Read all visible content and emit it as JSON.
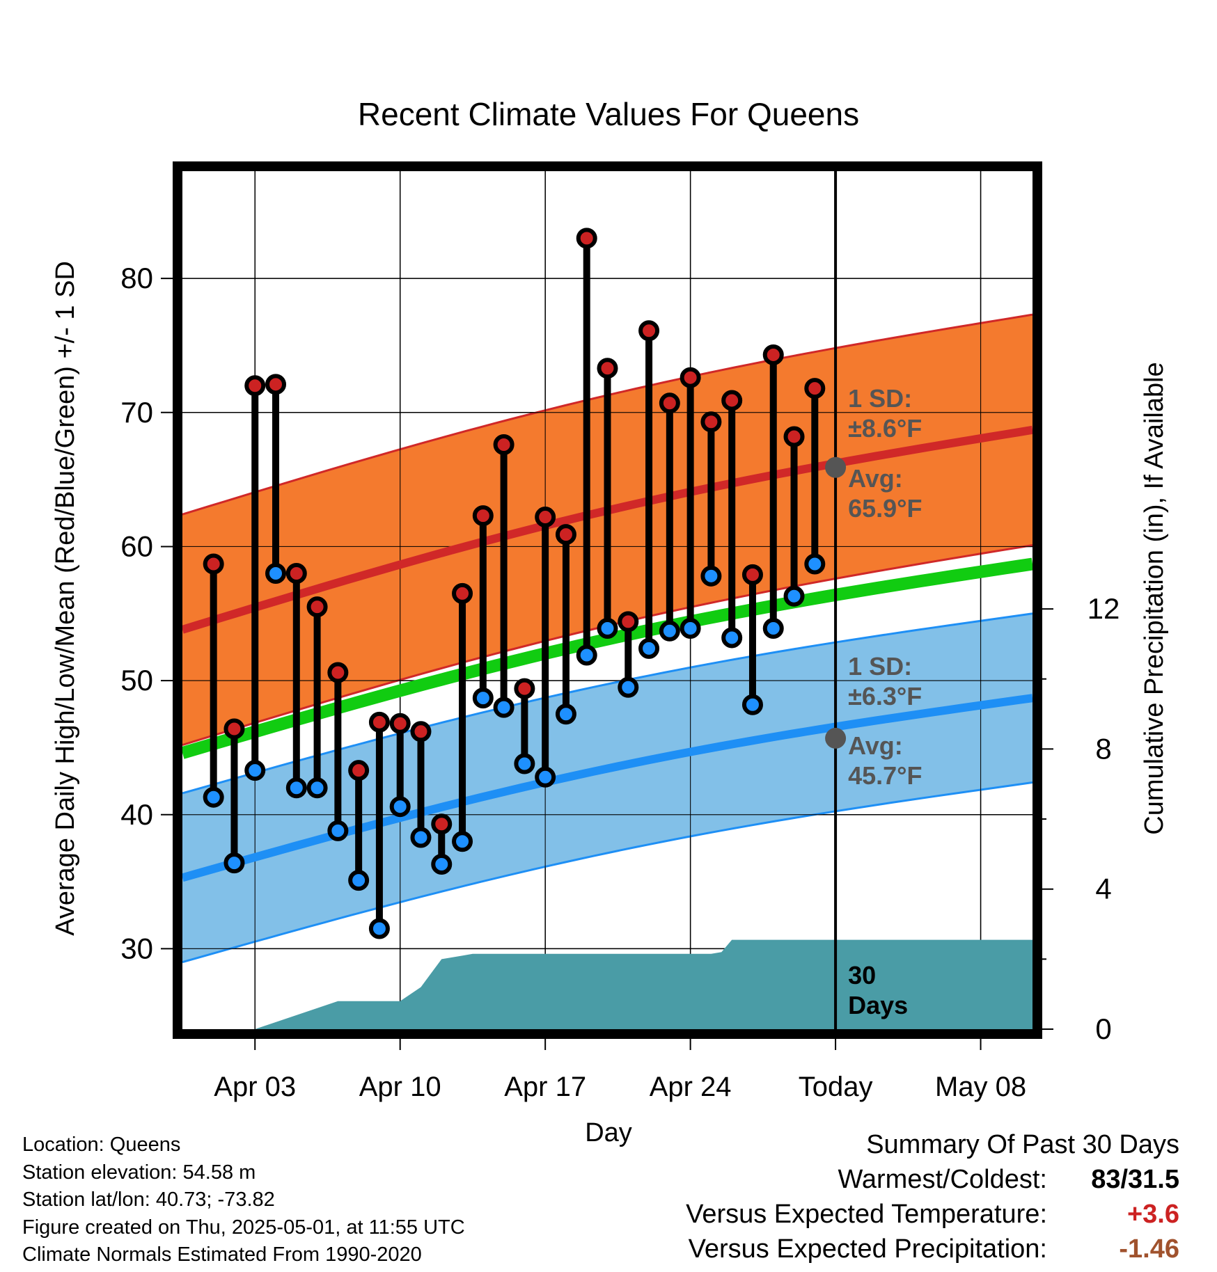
{
  "chart_data": {
    "type": "line",
    "title": "Recent Climate Values For Queens",
    "xlabel": "Day",
    "ylabel": "Average Daily High/Low/Mean (Red/Blue/Green) +/- 1 SD",
    "y2label": "Cumulative Precipitation (in), If Available",
    "x_tick_labels": [
      "Apr 03",
      "Apr 10",
      "Apr 17",
      "Apr 24",
      "Today",
      "May 08"
    ],
    "y_ticks": [
      30,
      40,
      50,
      60,
      70,
      80
    ],
    "y2_ticks": [
      0,
      4,
      8,
      12
    ],
    "ylim": [
      24,
      88
    ],
    "y2lim": [
      0,
      24.5
    ],
    "xlim": [
      -31.5,
      9.5
    ],
    "grid": true,
    "x_days": [
      -30,
      -29,
      -28,
      -27,
      -26,
      -25,
      -24,
      -23,
      -22,
      -21,
      -20,
      -19,
      -18,
      -17,
      -16,
      -15,
      -14,
      -13,
      -12,
      -11,
      -10,
      -9,
      -8,
      -7,
      -6,
      -5,
      -4,
      -3,
      -2,
      -1
    ],
    "daily_high": [
      58.7,
      46.4,
      72.0,
      72.1,
      58.0,
      55.5,
      50.6,
      43.3,
      46.9,
      46.8,
      46.2,
      39.3,
      56.5,
      62.3,
      67.6,
      49.4,
      62.2,
      60.9,
      83.0,
      73.3,
      54.4,
      76.1,
      70.7,
      72.6,
      69.3,
      70.9,
      57.9,
      74.3,
      68.2,
      71.8
    ],
    "daily_low": [
      41.3,
      36.4,
      43.3,
      58.0,
      42.0,
      42.0,
      38.8,
      35.1,
      31.5,
      40.6,
      38.3,
      36.3,
      38.0,
      48.7,
      48.0,
      43.8,
      42.8,
      47.5,
      51.9,
      53.9,
      49.5,
      52.4,
      53.7,
      53.9,
      57.8,
      53.2,
      48.2,
      53.9,
      56.3,
      58.7
    ],
    "normal_high": {
      "start_day": -31.5,
      "end_day": 9.5,
      "start": 53.8,
      "end": 68.7
    },
    "normal_low": {
      "start_day": -31.5,
      "end_day": 9.5,
      "start": 35.3,
      "end": 48.7
    },
    "normal_mean": {
      "start_day": -31.5,
      "end_day": 9.5,
      "start": 44.6,
      "end": 58.7
    },
    "high_sd": 8.6,
    "low_sd": 6.3,
    "today_high_avg": 65.9,
    "today_low_avg": 45.7,
    "precip_cumulative": {
      "days": [
        -31.5,
        -28,
        -24,
        -21,
        -20,
        -19,
        -18,
        -17.5,
        -16,
        -15,
        -11,
        -10,
        -9,
        -7,
        -6,
        -5.5,
        -5,
        9.5
      ],
      "values": [
        0,
        0,
        0.8,
        0.8,
        1.2,
        2.0,
        2.1,
        2.15,
        2.15,
        2.15,
        2.15,
        2.15,
        2.15,
        2.15,
        2.15,
        2.2,
        2.55,
        2.55
      ]
    },
    "series": [
      {
        "name": "High",
        "color": "#cc2222"
      },
      {
        "name": "Low",
        "color": "#1e90ff"
      },
      {
        "name": "Mean",
        "color": "#11cc11"
      }
    ],
    "annotations": {
      "high_sd_label": "1 SD:",
      "high_sd_value": "±8.6°F",
      "high_avg_label": "Avg:",
      "high_avg_value": "65.9°F",
      "low_sd_label": "1 SD:",
      "low_sd_value": "±6.3°F",
      "low_avg_label": "Avg:",
      "low_avg_value": "45.7°F",
      "days_label_1": "30",
      "days_label_2": "Days"
    }
  },
  "colors": {
    "high_band": "#f47a2e",
    "high_line": "#d02828",
    "low_band": "#82c0e8",
    "low_line": "#1e8ff5",
    "mean_line": "#11cc11",
    "precip_fill": "#4a9ca6",
    "high_dot": "#cc2222",
    "low_dot": "#1e90ff",
    "annotation_text": "#555555"
  },
  "footer": {
    "location": "Location: Queens",
    "elevation": "Station elevation: 54.58 m",
    "latlon": "Station lat/lon: 40.73; -73.82",
    "created": "Figure created on Thu, 2025-05-01, at 11:55 UTC",
    "normals": "Climate Normals Estimated From 1990-2020"
  },
  "summary": {
    "title": "Summary Of Past 30 Days",
    "warmest_coldest_label": "Warmest/Coldest:",
    "warmest_coldest_value": "83/31.5",
    "temp_label": "Versus Expected Temperature:",
    "temp_value": "+3.6",
    "precip_label": "Versus Expected Precipitation:",
    "precip_value": "-1.46"
  }
}
